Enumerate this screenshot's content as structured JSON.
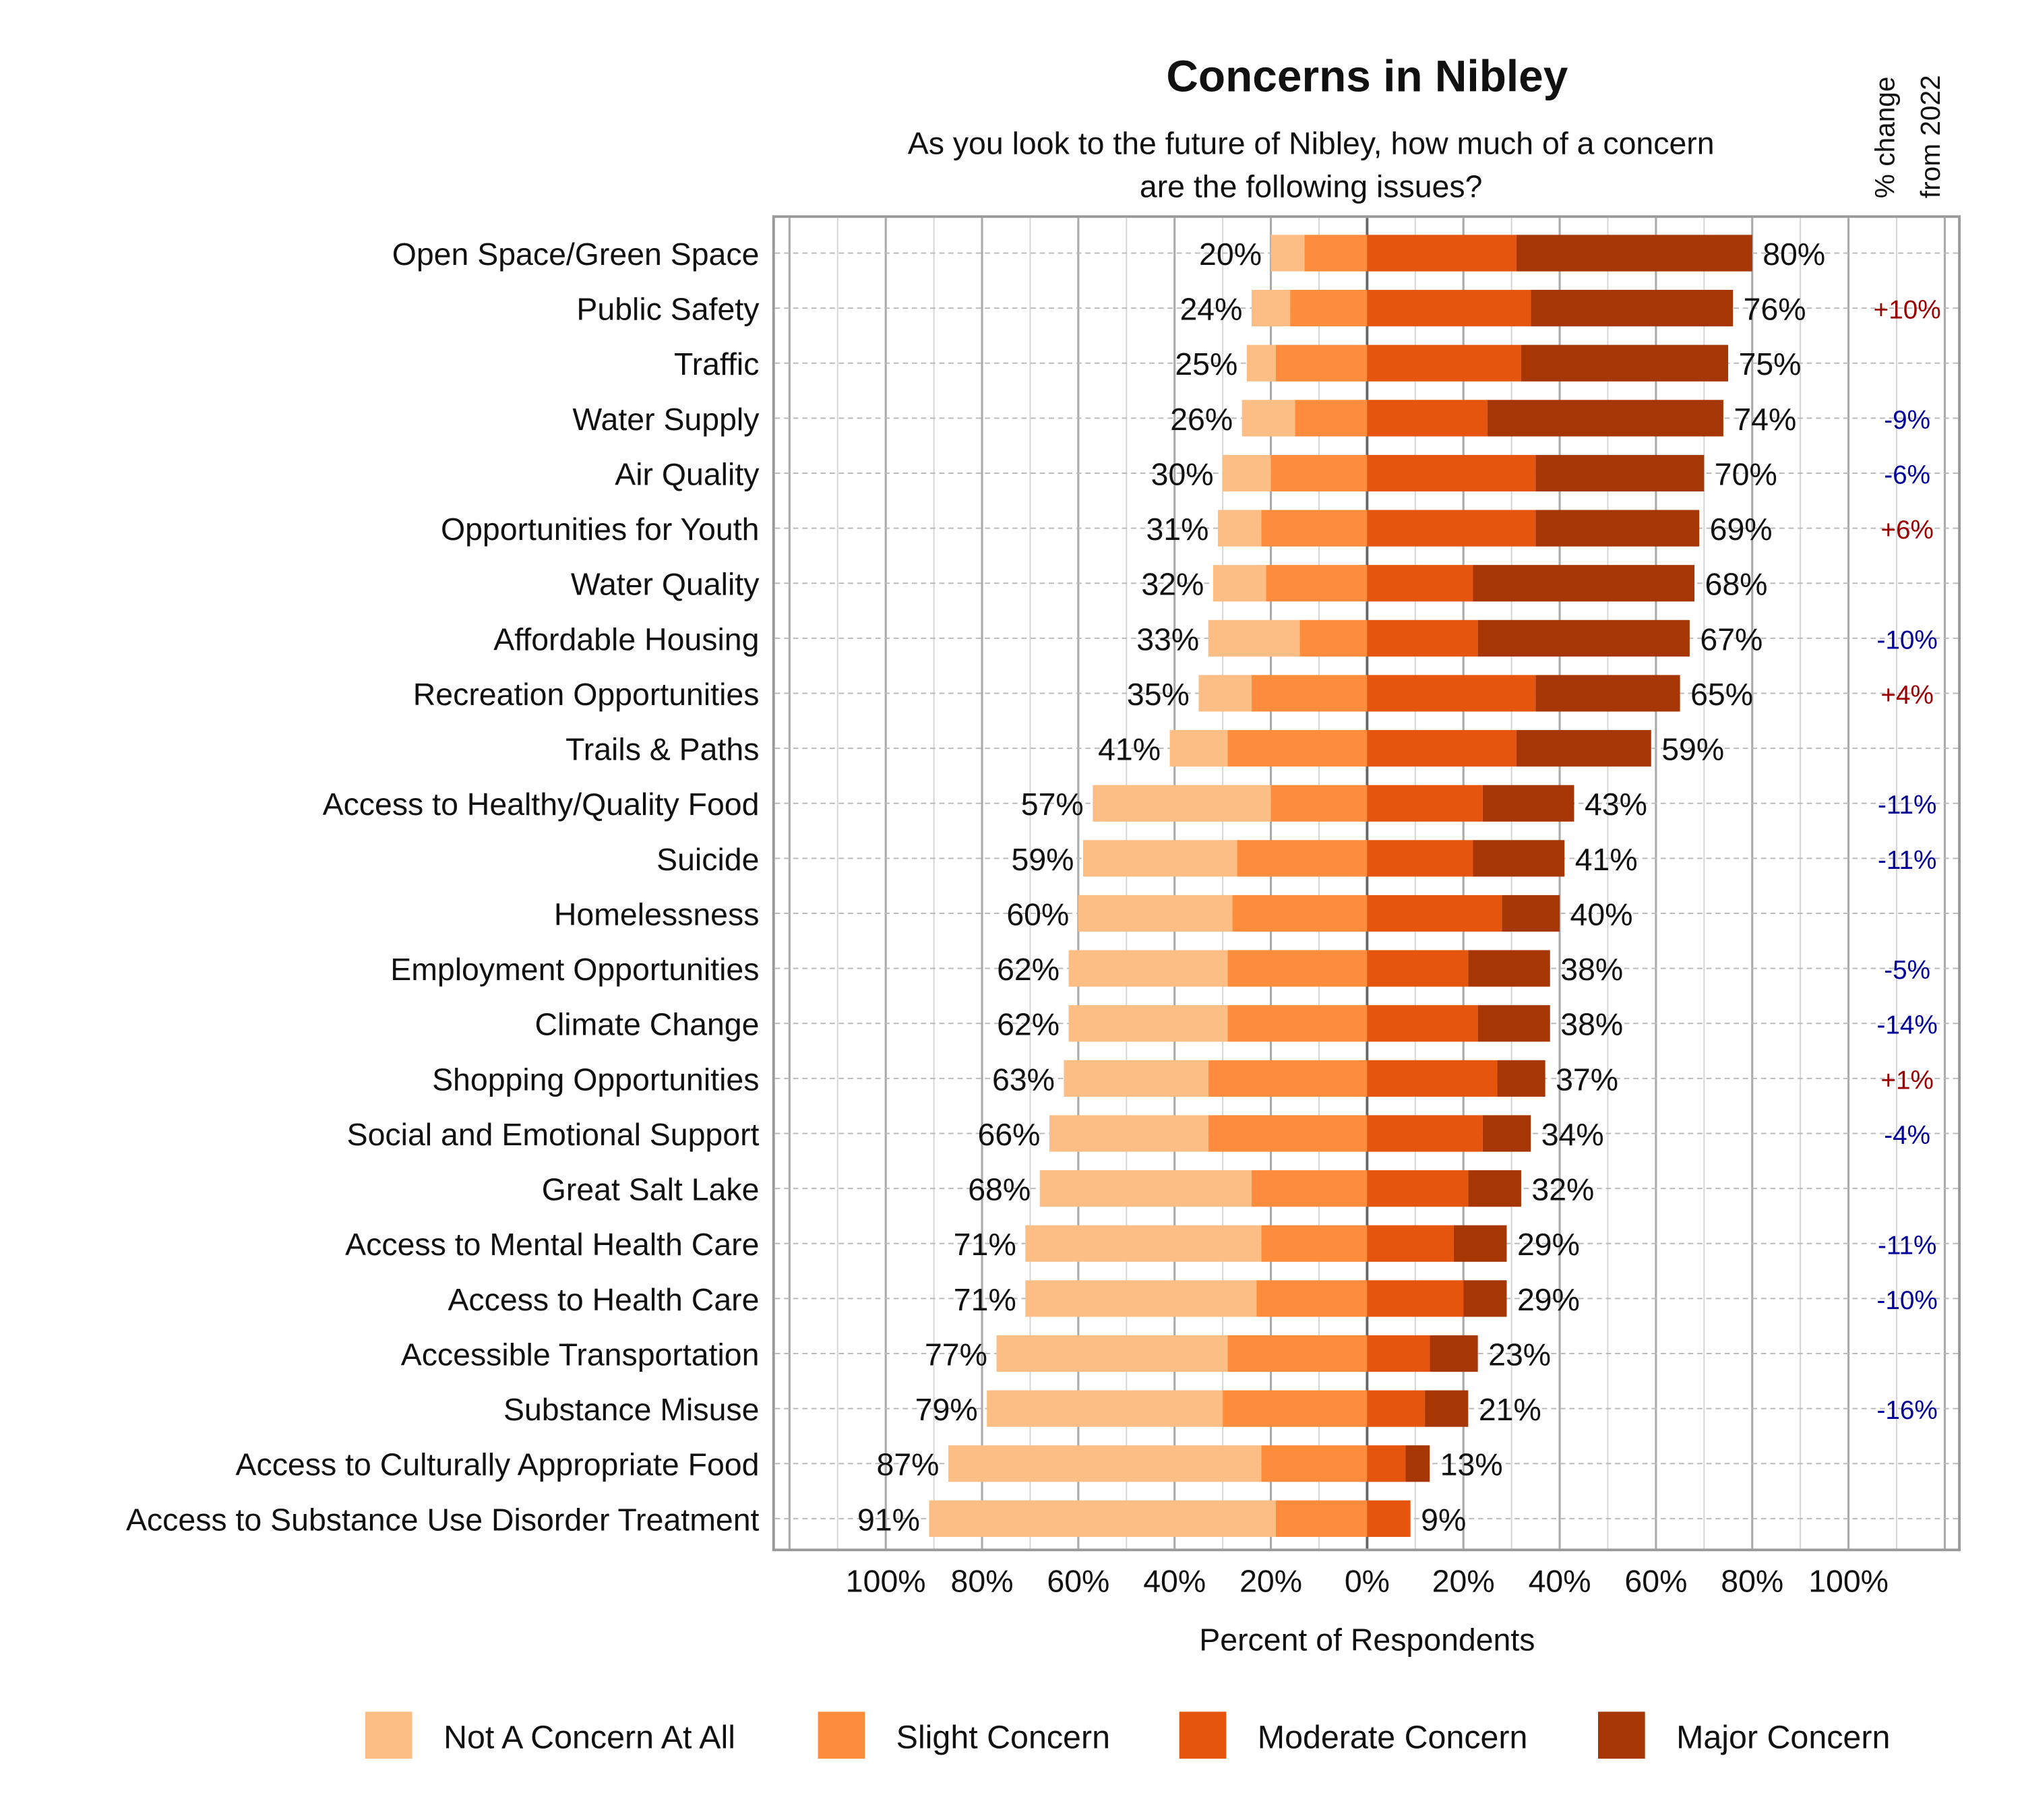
{
  "chart_data": {
    "type": "bar",
    "subtype": "diverging-stacked",
    "title": "Concerns in Nibley",
    "subtitle": [
      "As you look to the future of Nibley, how much of a concern",
      "are the following issues?"
    ],
    "xlabel": "Percent of Respondents",
    "change_header": [
      "% change",
      "from 2022"
    ],
    "xlim": [
      -100,
      100
    ],
    "x_ticks": [
      "100%",
      "80%",
      "60%",
      "40%",
      "20%",
      "0%",
      "20%",
      "40%",
      "60%",
      "80%",
      "100%"
    ],
    "grid": true,
    "legend_position": "bottom",
    "series": [
      {
        "name": "Not A Concern At All",
        "color": "#FDBE85",
        "side": "left"
      },
      {
        "name": "Slight Concern",
        "color": "#FD8D3C",
        "side": "left"
      },
      {
        "name": "Moderate Concern",
        "color": "#E6550D",
        "side": "right"
      },
      {
        "name": "Major Concern",
        "color": "#A63603",
        "side": "right"
      }
    ],
    "change_colors": {
      "positive": "#9B0000",
      "negative": "#000099"
    },
    "rows": [
      {
        "label": "Open Space/Green Space",
        "not": 7,
        "slight": 13,
        "moderate": 31,
        "major": 49,
        "left_total": "20%",
        "right_total": "80%",
        "change": ""
      },
      {
        "label": "Public Safety",
        "not": 8,
        "slight": 16,
        "moderate": 34,
        "major": 42,
        "left_total": "24%",
        "right_total": "76%",
        "change": "+10%"
      },
      {
        "label": "Traffic",
        "not": 6,
        "slight": 19,
        "moderate": 32,
        "major": 43,
        "left_total": "25%",
        "right_total": "75%",
        "change": ""
      },
      {
        "label": "Water Supply",
        "not": 11,
        "slight": 15,
        "moderate": 25,
        "major": 49,
        "left_total": "26%",
        "right_total": "74%",
        "change": "-9%"
      },
      {
        "label": "Air Quality",
        "not": 10,
        "slight": 20,
        "moderate": 35,
        "major": 35,
        "left_total": "30%",
        "right_total": "70%",
        "change": "-6%"
      },
      {
        "label": "Opportunities for Youth",
        "not": 9,
        "slight": 22,
        "moderate": 35,
        "major": 34,
        "left_total": "31%",
        "right_total": "69%",
        "change": "+6%"
      },
      {
        "label": "Water Quality",
        "not": 11,
        "slight": 21,
        "moderate": 22,
        "major": 46,
        "left_total": "32%",
        "right_total": "68%",
        "change": ""
      },
      {
        "label": "Affordable Housing",
        "not": 19,
        "slight": 14,
        "moderate": 23,
        "major": 44,
        "left_total": "33%",
        "right_total": "67%",
        "change": "-10%"
      },
      {
        "label": "Recreation Opportunities",
        "not": 11,
        "slight": 24,
        "moderate": 35,
        "major": 30,
        "left_total": "35%",
        "right_total": "65%",
        "change": "+4%"
      },
      {
        "label": "Trails & Paths",
        "not": 12,
        "slight": 29,
        "moderate": 31,
        "major": 28,
        "left_total": "41%",
        "right_total": "59%",
        "change": ""
      },
      {
        "label": "Access to Healthy/Quality Food",
        "not": 37,
        "slight": 20,
        "moderate": 24,
        "major": 19,
        "left_total": "57%",
        "right_total": "43%",
        "change": "-11%"
      },
      {
        "label": "Suicide",
        "not": 32,
        "slight": 27,
        "moderate": 22,
        "major": 19,
        "left_total": "59%",
        "right_total": "41%",
        "change": "-11%"
      },
      {
        "label": "Homelessness",
        "not": 32,
        "slight": 28,
        "moderate": 28,
        "major": 12,
        "left_total": "60%",
        "right_total": "40%",
        "change": ""
      },
      {
        "label": "Employment Opportunities",
        "not": 33,
        "slight": 29,
        "moderate": 21,
        "major": 17,
        "left_total": "62%",
        "right_total": "38%",
        "change": "-5%"
      },
      {
        "label": "Climate Change",
        "not": 33,
        "slight": 29,
        "moderate": 23,
        "major": 15,
        "left_total": "62%",
        "right_total": "38%",
        "change": "-14%"
      },
      {
        "label": "Shopping Opportunities",
        "not": 30,
        "slight": 33,
        "moderate": 27,
        "major": 10,
        "left_total": "63%",
        "right_total": "37%",
        "change": "+1%"
      },
      {
        "label": "Social and Emotional Support",
        "not": 33,
        "slight": 33,
        "moderate": 24,
        "major": 10,
        "left_total": "66%",
        "right_total": "34%",
        "change": "-4%"
      },
      {
        "label": "Great Salt Lake",
        "not": 44,
        "slight": 24,
        "moderate": 21,
        "major": 11,
        "left_total": "68%",
        "right_total": "32%",
        "change": ""
      },
      {
        "label": "Access to Mental Health Care",
        "not": 49,
        "slight": 22,
        "moderate": 18,
        "major": 11,
        "left_total": "71%",
        "right_total": "29%",
        "change": "-11%"
      },
      {
        "label": "Access to Health Care",
        "not": 48,
        "slight": 23,
        "moderate": 20,
        "major": 9,
        "left_total": "71%",
        "right_total": "29%",
        "change": "-10%"
      },
      {
        "label": "Accessible Transportation",
        "not": 48,
        "slight": 29,
        "moderate": 13,
        "major": 10,
        "left_total": "77%",
        "right_total": "23%",
        "change": ""
      },
      {
        "label": "Substance Misuse",
        "not": 49,
        "slight": 30,
        "moderate": 12,
        "major": 9,
        "left_total": "79%",
        "right_total": "21%",
        "change": "-16%"
      },
      {
        "label": "Access to Culturally Appropriate Food",
        "not": 65,
        "slight": 22,
        "moderate": 8,
        "major": 5,
        "left_total": "87%",
        "right_total": "13%",
        "change": ""
      },
      {
        "label": "Access to Substance Use Disorder Treatment",
        "not": 72,
        "slight": 19,
        "moderate": 9,
        "major": 0,
        "left_total": "91%",
        "right_total": "9%",
        "change": ""
      }
    ]
  }
}
